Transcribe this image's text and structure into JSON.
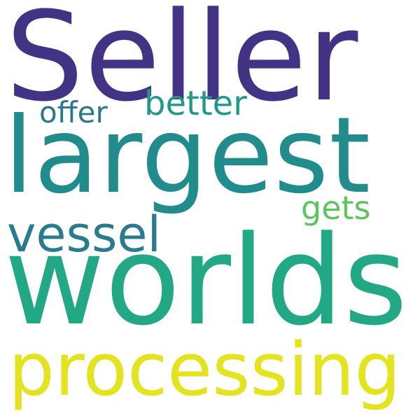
{
  "words": {
    "seller": {
      "text": "Seller",
      "color": "#433384"
    },
    "largest": {
      "text": "largest",
      "color": "#228c8d"
    },
    "offer": {
      "text": "offer",
      "color": "#2a788e"
    },
    "better": {
      "text": "better",
      "color": "#21998a"
    },
    "gets": {
      "text": "gets",
      "color": "#5ec55e"
    },
    "vessel": {
      "text": "vessel",
      "color": "#2b7b8e"
    },
    "worlds": {
      "text": "worlds",
      "color": "#22a884"
    },
    "processing": {
      "text": "processing",
      "color": "#e3e31f"
    }
  }
}
